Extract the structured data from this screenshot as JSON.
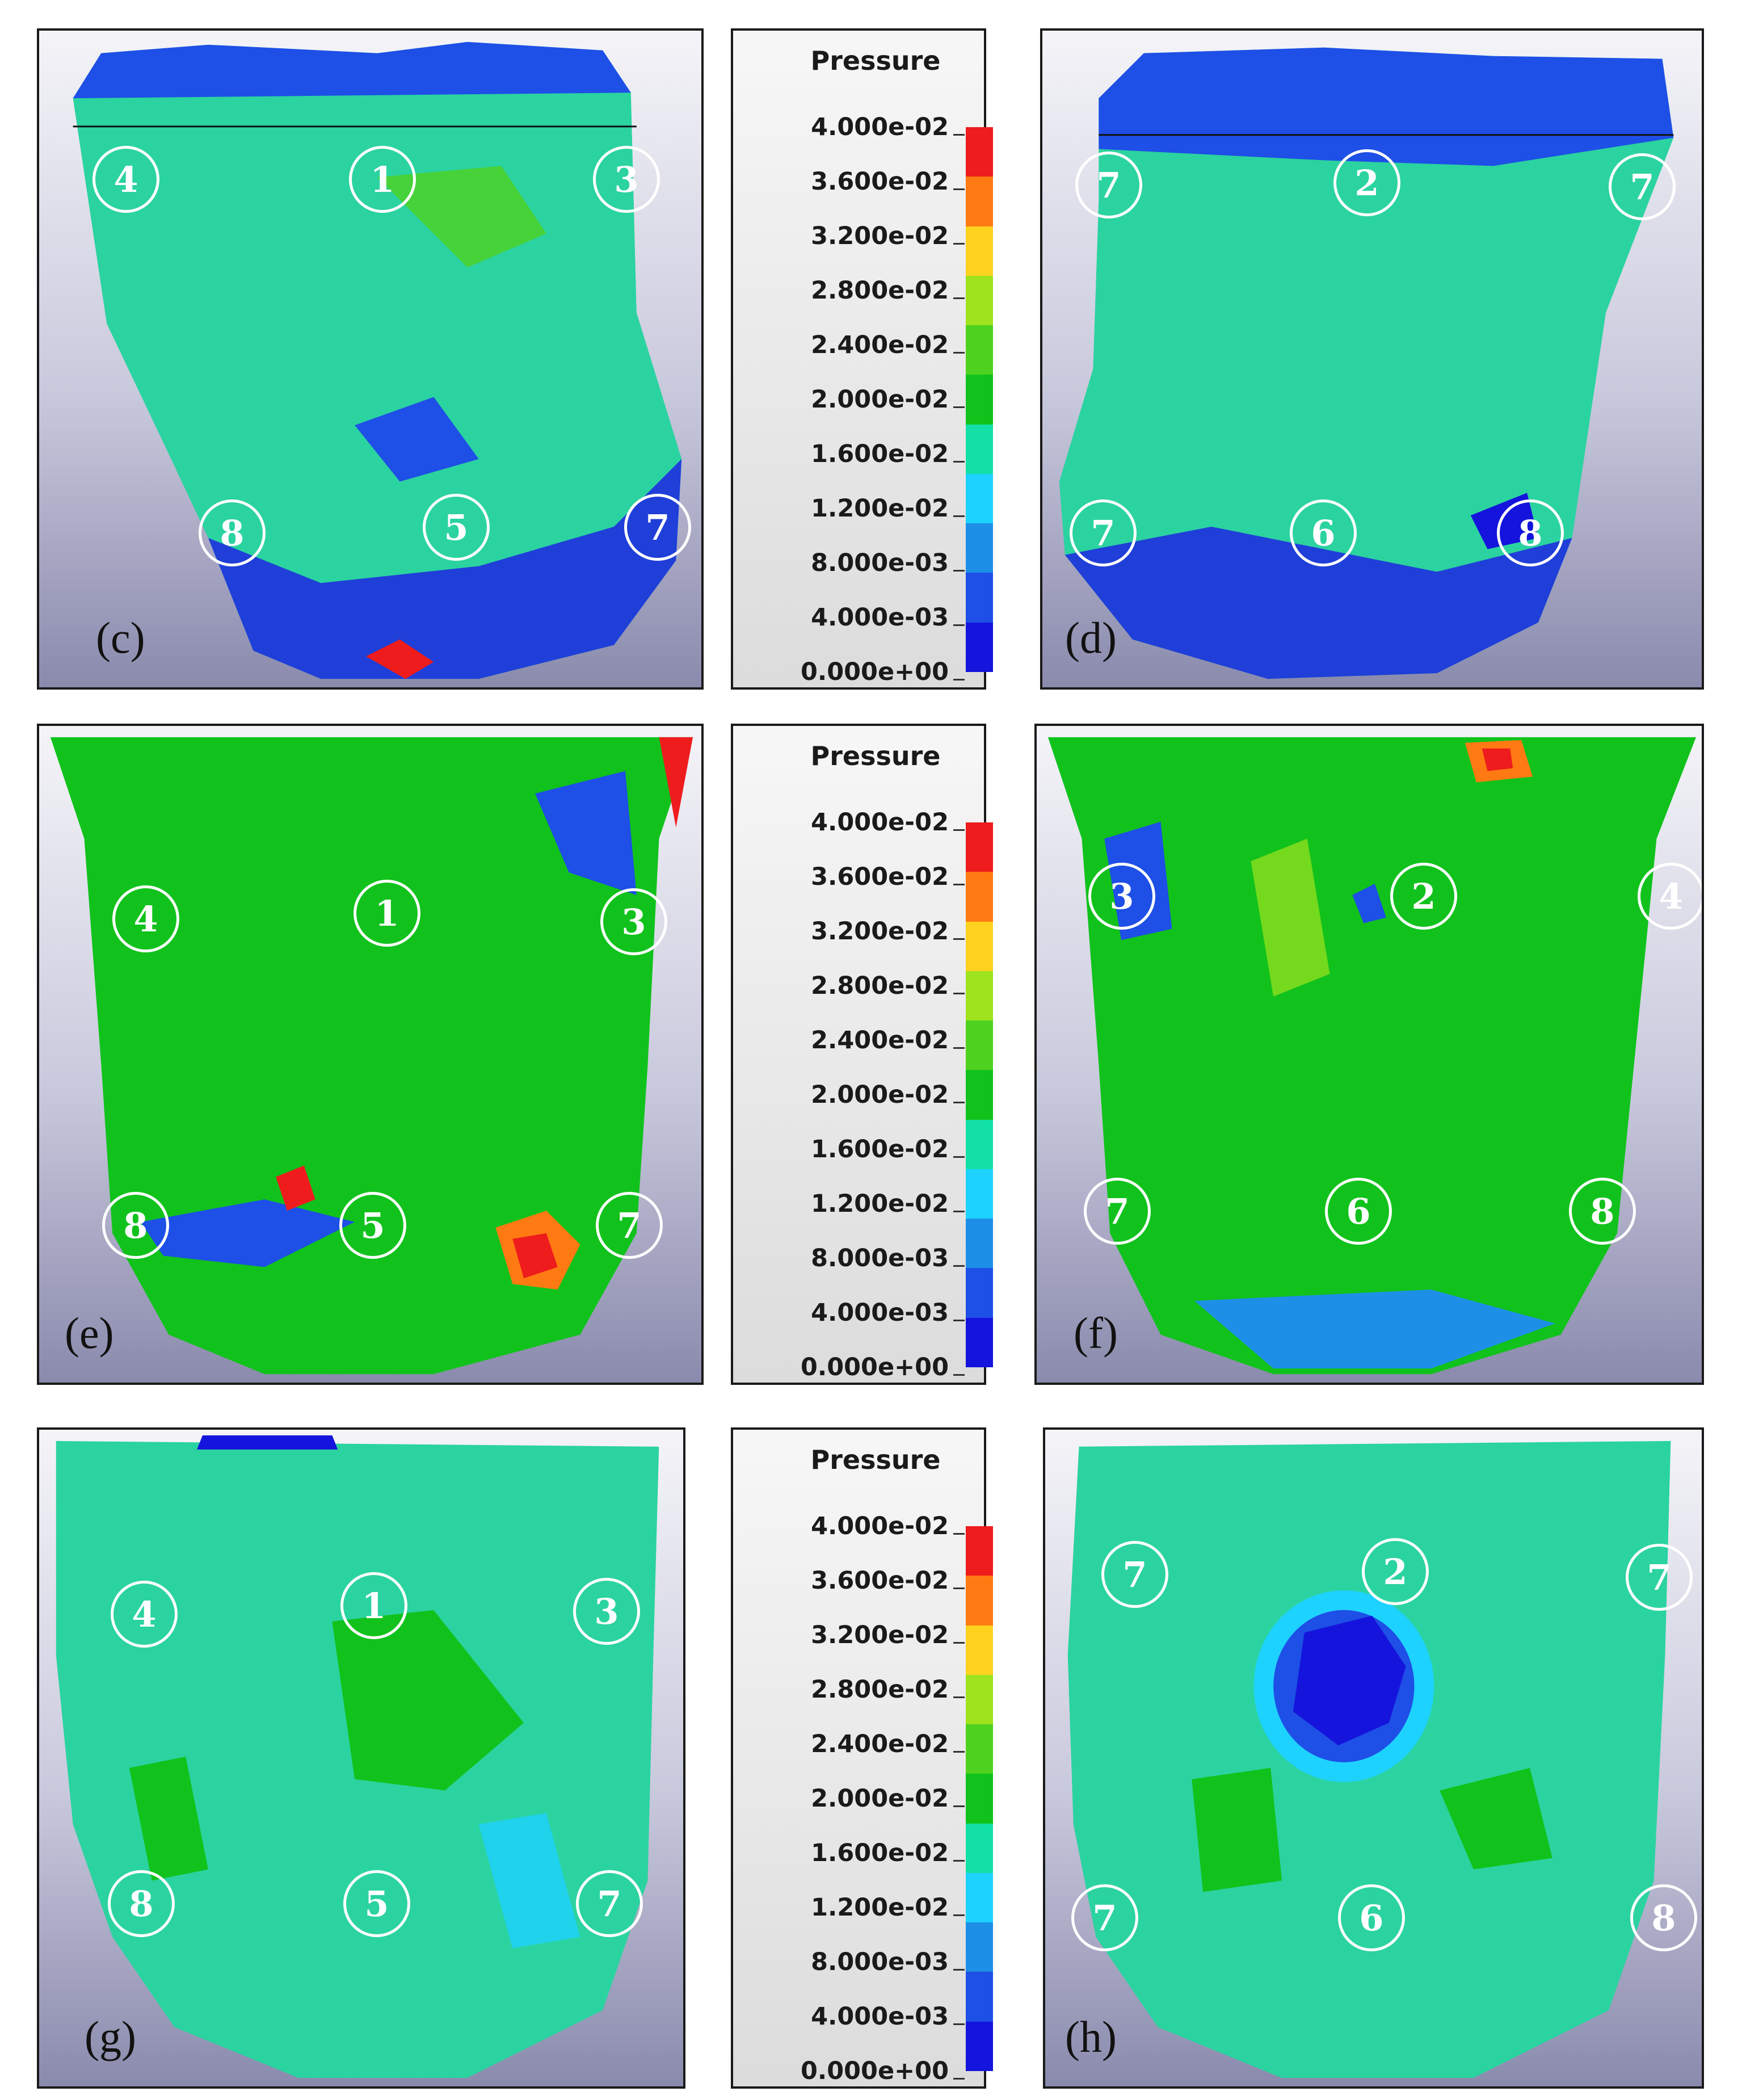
{
  "figure": {
    "panels": [
      {
        "id": "c",
        "label": "(c)",
        "markers": [
          "4",
          "1",
          "3",
          "8",
          "5",
          "7"
        ]
      },
      {
        "id": "d",
        "label": "(d)",
        "markers": [
          "7",
          "2",
          "7",
          "7",
          "6",
          "8"
        ]
      },
      {
        "id": "e",
        "label": "(e)",
        "markers": [
          "4",
          "1",
          "3",
          "8",
          "5",
          "7"
        ]
      },
      {
        "id": "f",
        "label": "(f)",
        "markers": [
          "3",
          "2",
          "4",
          "7",
          "6",
          "8"
        ]
      },
      {
        "id": "g",
        "label": "(g)",
        "markers": [
          "4",
          "1",
          "3",
          "8",
          "5",
          "7"
        ]
      },
      {
        "id": "h",
        "label": "(h)",
        "markers": [
          "7",
          "2",
          "7",
          "7",
          "6",
          "8"
        ]
      }
    ],
    "legend": {
      "title": "Pressure",
      "ticks": [
        "4.000e-02",
        "3.600e-02",
        "3.200e-02",
        "2.800e-02",
        "2.400e-02",
        "2.000e-02",
        "1.600e-02",
        "1.200e-02",
        "8.000e-03",
        "4.000e-03",
        "0.000e+00"
      ],
      "colors_top_to_bottom": [
        "#ee1c1c",
        "#ff7a12",
        "#ffd21f",
        "#9fe21e",
        "#4fd21f",
        "#11c21c",
        "#12e0a6",
        "#1ed2ff",
        "#1d8fe6",
        "#1e4fe6",
        "#1414dc"
      ]
    }
  }
}
